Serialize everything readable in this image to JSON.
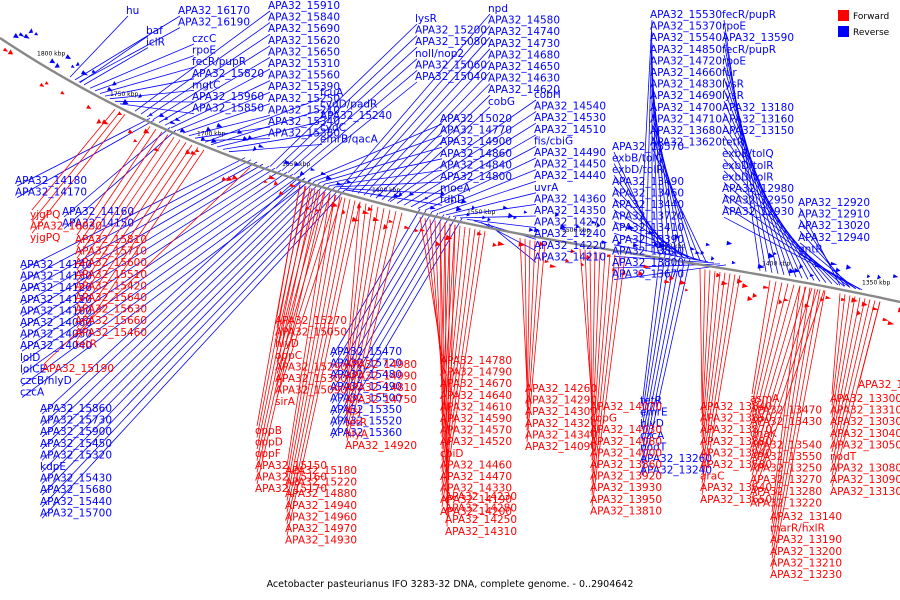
{
  "caption": "Acetobacter pasteurianus IFO 3283-32 DNA, complete genome. - 0..2904642",
  "legend": [
    {
      "label": "Forward",
      "color": "#ff0000"
    },
    {
      "label": "Reverse",
      "color": "#0000ff"
    }
  ],
  "colors": {
    "forward": "#ff0000",
    "reverse": "#0000ff",
    "backbone": "#888888"
  },
  "ticks": [
    "1800 kbp",
    "1750 kbp",
    "1700 kbp",
    "1650 kbp",
    "1600 kbp",
    "1550 kbp",
    "1500 kbp",
    "1450 kbp",
    "1400 kbp",
    "1350 kbp"
  ],
  "reverse_labels": [
    "hu",
    "APA32_16170",
    "APA32_16190",
    "baf",
    "iclR",
    "czcC",
    "rpoE",
    "fecR/pupR",
    "APA32_15820",
    "mgtC",
    "APA32_15960",
    "APA32_15850",
    "APA32_15910",
    "APA32_15840",
    "APA32_15690",
    "APA32_15620",
    "APA32_15650",
    "APA32_15310",
    "APA32_15560",
    "APA32_15390",
    "APA32_15250",
    "APA32_15210",
    "APA32_15340",
    "APA32_15380",
    "fcuA",
    "cydD/padR",
    "APA32_15240",
    "cydC",
    "emrB/qacA",
    "lysR",
    "APA32_15200",
    "APA32_15080",
    "nolI/nop2",
    "APA32_15060",
    "APA32_15040",
    "APA32_15020",
    "APA32_14770",
    "APA32_14900",
    "APA32_14860",
    "APA32_14840",
    "APA32_14800",
    "moeA",
    "fdhD",
    "npd",
    "APA32_14580",
    "APA32_14740",
    "APA32_14730",
    "APA32_14680",
    "APA32_14650",
    "APA32_14630",
    "APA32_14620",
    "cobG",
    "cobH",
    "APA32_14540",
    "APA32_14530",
    "APA32_14510",
    "fis/cbiG",
    "APA32_14490",
    "APA32_14450",
    "APA32_14440",
    "uvrA",
    "APA32_14360",
    "APA32_14350",
    "APA32_14270",
    "APA32_14240",
    "APA32_14220",
    "APA32_14210",
    "APA32_14180",
    "APA32_14170",
    "APA32_14160",
    "APA32_14150",
    "APA32_14140",
    "APA32_14130",
    "APA32_14120",
    "APA32_14110",
    "APA32_14100",
    "APA32_14060",
    "APA32_14050",
    "APA32_14040",
    "lolD",
    "lolCE",
    "czcB/hlyD",
    "czcA",
    "APA32_15860",
    "APA32_15730",
    "APA32_15900",
    "APA32_15450",
    "APA32_15320",
    "kdpE",
    "APA32_15430",
    "APA32_15680",
    "APA32_15440",
    "APA32_15700",
    "APA32_15470",
    "APA32_15720",
    "APA32_15480",
    "APA32_15490",
    "APA32_15500",
    "APA32_15350",
    "APA32_15520",
    "APA32_15360",
    "APA32_15530",
    "APA32_15370",
    "APA32_15540",
    "APA32_14850",
    "APA32_14720",
    "APA32_14660",
    "APA32_14830",
    "APA32_14690",
    "APA32_14700",
    "APA32_14710",
    "APA32_13680",
    "APA32_13620",
    "APA32_13570",
    "exbB/tolQ",
    "exbD/tolR",
    "APA32_13490",
    "APA32_13460",
    "APA32_13440",
    "APA32_13720",
    "APA32_13410",
    "APA32_13390",
    "APA32_13820",
    "APA32_13800",
    "APA32_13670",
    "fecR/pupR",
    "rpoE",
    "APA32_13590",
    "fecR/pupR",
    "rpoE",
    "fur",
    "lysR",
    "lysR",
    "APA32_13180",
    "APA32_13160",
    "APA32_13150",
    "tetR",
    "exbB/tolQ",
    "exbD/tolR",
    "exbD/tolR",
    "APA32_12980",
    "APA32_12950",
    "APA32_12930",
    "APA32_12920",
    "APA32_12910",
    "APA32_13020",
    "APA32_12940",
    "gntR",
    "tetR",
    "emrE",
    "hlyD",
    "czcA",
    "nodT",
    "APA32_13260",
    "APA32_13240",
    "tetR",
    "APA32_13100",
    "xdhA",
    "xdhB",
    "xdh C",
    "lysR",
    "APA32_13700",
    "APA32_13690",
    "APA32_13520",
    "APA32_13740",
    "APA32_13530",
    "APA32_13710",
    "APA32_13560"
  ],
  "forward_labels": [
    "yjgPQ",
    "APA32_16030",
    "yjgPQ",
    "APA32_15810",
    "APA32_15710",
    "APA32_15600",
    "APA32_15510",
    "APA32_15420",
    "APA32_15640",
    "APA32_15630",
    "APA32_15660",
    "APA32_15460",
    "tetR",
    "APA32_15190",
    "APA32_15270",
    "APA32_15050",
    "hlyD",
    "oppC",
    "APA32_15290",
    "APA32_15300",
    "APA32_15090",
    "sirA",
    "oppB",
    "oppD",
    "oppF",
    "APA32_15150",
    "APA32_15160",
    "APA32_15170",
    "APA32_15180",
    "APA32_15220",
    "APA32_14880",
    "APA32_14940",
    "APA32_14960",
    "APA32_14970",
    "APA32_14930",
    "APA32_14980",
    "APA32_14990",
    "APA32_14810",
    "APA32_14750",
    "ftsJ",
    "tetR",
    "hlyA",
    "APA32_14920",
    "APA32_14780",
    "APA32_14790",
    "APA32_14670",
    "APA32_14640",
    "APA32_14610",
    "APA32_14590",
    "APA32_14570",
    "APA32_14520",
    "cbiD",
    "APA32_14460",
    "APA32_14470",
    "APA32_14330",
    "APA32_14190",
    "APA32_14200",
    "APA32_14230",
    "APA32_14280",
    "APA32_14250",
    "APA32_14310",
    "APA32_14260",
    "APA32_14290",
    "APA32_14300",
    "APA32_14320",
    "APA32_14340",
    "APA32_14090",
    "APA32_14070",
    "copG",
    "APA32_14030",
    "APA32_14080",
    "APA32_14000",
    "APA32_13860",
    "APA32_13920",
    "APA32_13930",
    "APA32_13950",
    "APA32_13810",
    "APA32_13840",
    "APA32_13850",
    "APA32_13870",
    "APA32_13880",
    "APA32_13940",
    "APA32_13580",
    "araC",
    "APA32_13640",
    "APA32_13650",
    "asmA",
    "APA32_13470",
    "APA32_13430",
    "dnaK",
    "APA32_13540",
    "APA32_13550",
    "APA32_13250",
    "APA32_13270",
    "APA32_13280",
    "APA32_13220",
    "APA32_13300",
    "APA32_13310",
    "APA32_13030",
    "APA32_13040",
    "APA32_13050",
    "nodT",
    "APA32_13080",
    "APA32_13090",
    "APA32_13130",
    "APA32_13140",
    "marR/hxlR",
    "APA32_13190",
    "APA32_13200",
    "APA32_13210",
    "APA32_13230",
    "APA32_13290",
    "APA32_13320",
    "lysR"
  ]
}
